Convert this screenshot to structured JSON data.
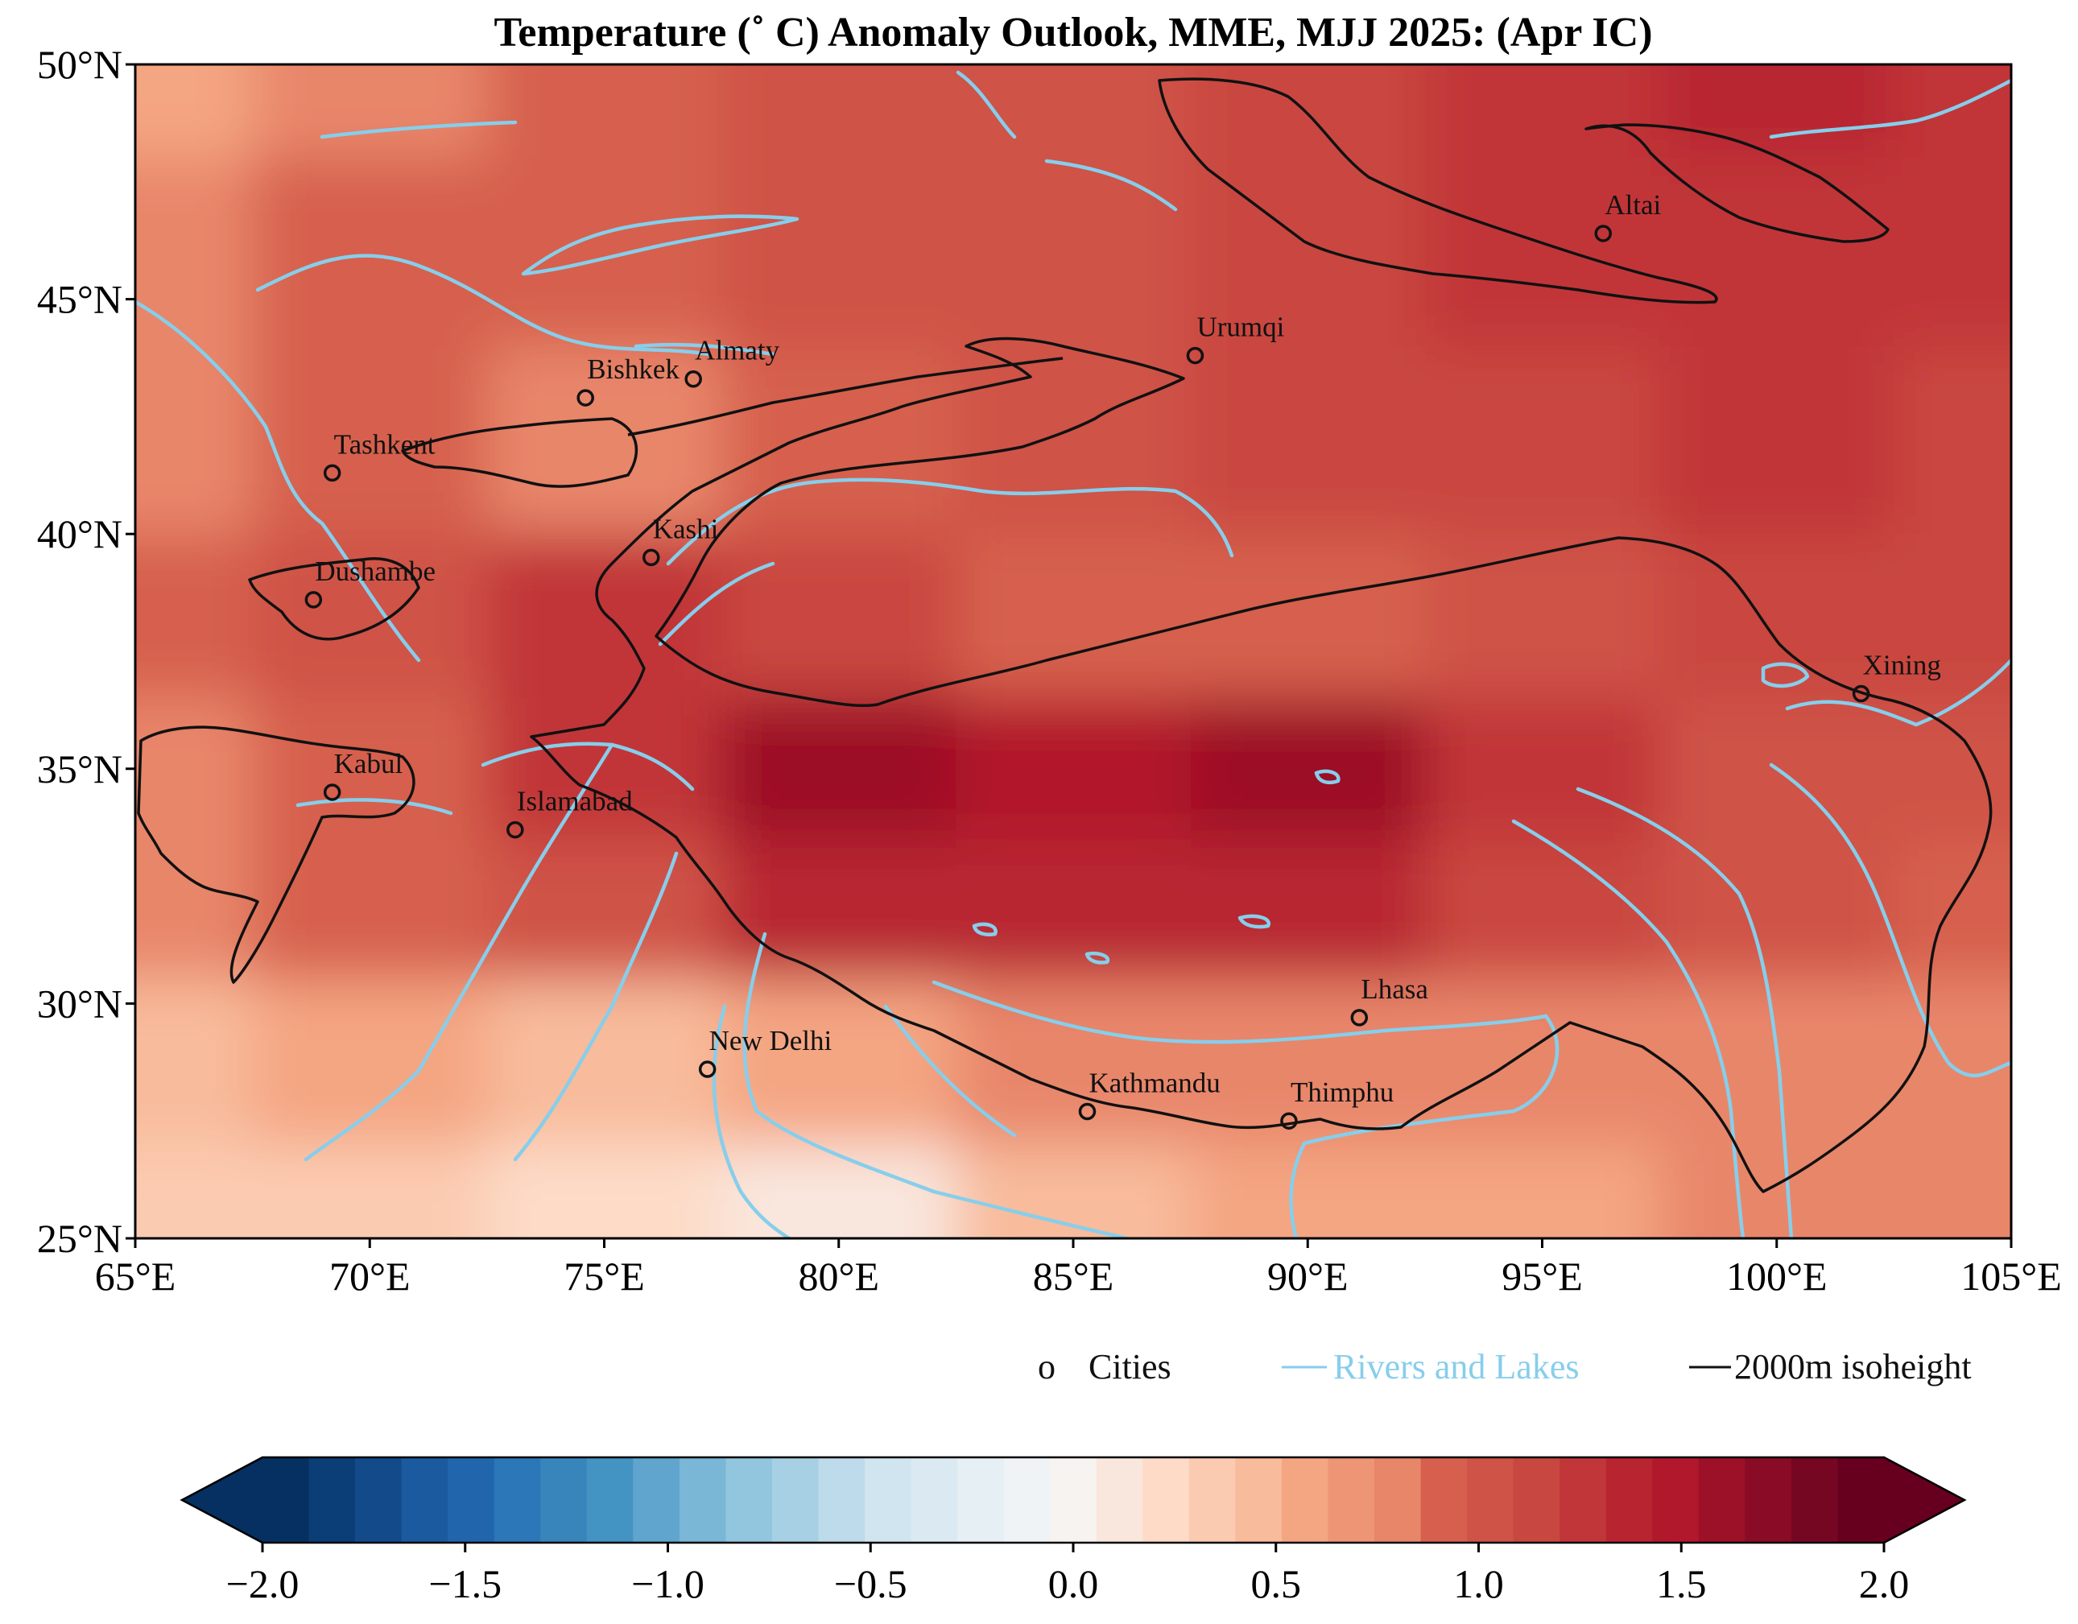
{
  "title": "Temperature (˚ C) Anomaly Outlook, MME, MJJ  2025:  (Apr IC)",
  "x_ticks": [
    {
      "lon": 65,
      "label": "65°E"
    },
    {
      "lon": 70,
      "label": "70°E"
    },
    {
      "lon": 75,
      "label": "75°E"
    },
    {
      "lon": 80,
      "label": "80°E"
    },
    {
      "lon": 85,
      "label": "85°E"
    },
    {
      "lon": 90,
      "label": "90°E"
    },
    {
      "lon": 95,
      "label": "95°E"
    },
    {
      "lon": 100,
      "label": "100°E"
    },
    {
      "lon": 105,
      "label": "105°E"
    }
  ],
  "y_ticks": [
    {
      "lat": 25,
      "label": "25°N"
    },
    {
      "lat": 30,
      "label": "30°N"
    },
    {
      "lat": 35,
      "label": "35°N"
    },
    {
      "lat": 40,
      "label": "40°N"
    },
    {
      "lat": 45,
      "label": "45°N"
    },
    {
      "lat": 50,
      "label": "50°N"
    }
  ],
  "extent": {
    "lon": [
      65,
      105
    ],
    "lat": [
      25,
      50
    ]
  },
  "cities": [
    {
      "name": "Altai",
      "lon": 96.3,
      "lat": 46.4
    },
    {
      "name": "Urumqi",
      "lon": 87.6,
      "lat": 43.8
    },
    {
      "name": "Almaty",
      "lon": 76.9,
      "lat": 43.3
    },
    {
      "name": "Bishkek",
      "lon": 74.6,
      "lat": 42.9
    },
    {
      "name": "Tashkent",
      "lon": 69.2,
      "lat": 41.3
    },
    {
      "name": "Kashi",
      "lon": 76.0,
      "lat": 39.5
    },
    {
      "name": "Dushambe",
      "lon": 68.8,
      "lat": 38.6
    },
    {
      "name": "Xining",
      "lon": 101.8,
      "lat": 36.6
    },
    {
      "name": "Kabul",
      "lon": 69.2,
      "lat": 34.5
    },
    {
      "name": "Islamabad",
      "lon": 73.1,
      "lat": 33.7
    },
    {
      "name": "Lhasa",
      "lon": 91.1,
      "lat": 29.7
    },
    {
      "name": "New Delhi",
      "lon": 77.2,
      "lat": 28.6
    },
    {
      "name": "Kathmandu",
      "lon": 85.3,
      "lat": 27.7
    },
    {
      "name": "Thimphu",
      "lon": 89.6,
      "lat": 27.5
    }
  ],
  "legend": {
    "cities_marker": "o",
    "cities_label": "Cities",
    "rivers_label": "Rivers and Lakes",
    "isoheight_label": "2000m isoheight",
    "river_color": "#87ceeb"
  },
  "colorbar": {
    "min": -2.0,
    "max": 2.0,
    "ticks": [
      {
        "value": -2.0,
        "label": "−2.0"
      },
      {
        "value": -1.5,
        "label": "−1.5"
      },
      {
        "value": -1.0,
        "label": "−1.0"
      },
      {
        "value": -0.5,
        "label": "−0.5"
      },
      {
        "value": 0.0,
        "label": "0.0"
      },
      {
        "value": 0.5,
        "label": "0.5"
      },
      {
        "value": 1.0,
        "label": "1.0"
      },
      {
        "value": 1.5,
        "label": "1.5"
      },
      {
        "value": 2.0,
        "label": "2.0"
      }
    ],
    "colors": [
      "#053061",
      "#0b3d77",
      "#134b8a",
      "#1c5a9f",
      "#2166ac",
      "#2b77b7",
      "#3885bc",
      "#4393c3",
      "#5fa5cd",
      "#7ab6d6",
      "#92c5de",
      "#a7d0e4",
      "#bddbea",
      "#d1e5f0",
      "#dbeaf2",
      "#e6eff4",
      "#f0f3f5",
      "#f7f3f1",
      "#f9e6dd",
      "#fddbc7",
      "#fbcbb1",
      "#f8bb9b",
      "#f4a582",
      "#ee9576",
      "#e8866a",
      "#d6604d",
      "#cf5347",
      "#c94741",
      "#c13639",
      "#b82530",
      "#b2182b",
      "#9c1127",
      "#8a0b25",
      "#760722",
      "#67001f"
    ],
    "under_color": "#053061",
    "over_color": "#67001f"
  },
  "anomaly_field": {
    "description_free_values": true,
    "grid_lon": [
      65,
      70,
      75,
      80,
      85,
      90,
      95,
      100,
      105
    ],
    "grid_lat": [
      50,
      46,
      42,
      38,
      35,
      32,
      29,
      25
    ],
    "values": [
      [
        0.6,
        0.85,
        0.95,
        1.0,
        1.05,
        1.15,
        1.3,
        1.35,
        1.25
      ],
      [
        0.75,
        0.9,
        0.95,
        1.0,
        1.05,
        1.1,
        1.2,
        1.3,
        1.25
      ],
      [
        0.85,
        0.95,
        0.8,
        0.95,
        1.05,
        1.1,
        1.15,
        1.2,
        1.15
      ],
      [
        0.9,
        1.0,
        1.25,
        1.1,
        0.95,
        0.95,
        1.05,
        1.1,
        1.1
      ],
      [
        0.85,
        0.95,
        1.3,
        1.6,
        1.5,
        1.55,
        1.2,
        1.05,
        1.0
      ],
      [
        0.75,
        0.9,
        1.05,
        1.35,
        1.4,
        1.35,
        1.1,
        1.0,
        0.95
      ],
      [
        0.45,
        0.55,
        0.5,
        0.55,
        0.8,
        0.85,
        0.8,
        0.85,
        0.85
      ],
      [
        0.3,
        0.3,
        0.2,
        0.1,
        0.4,
        0.55,
        0.6,
        0.75,
        0.8
      ]
    ]
  }
}
